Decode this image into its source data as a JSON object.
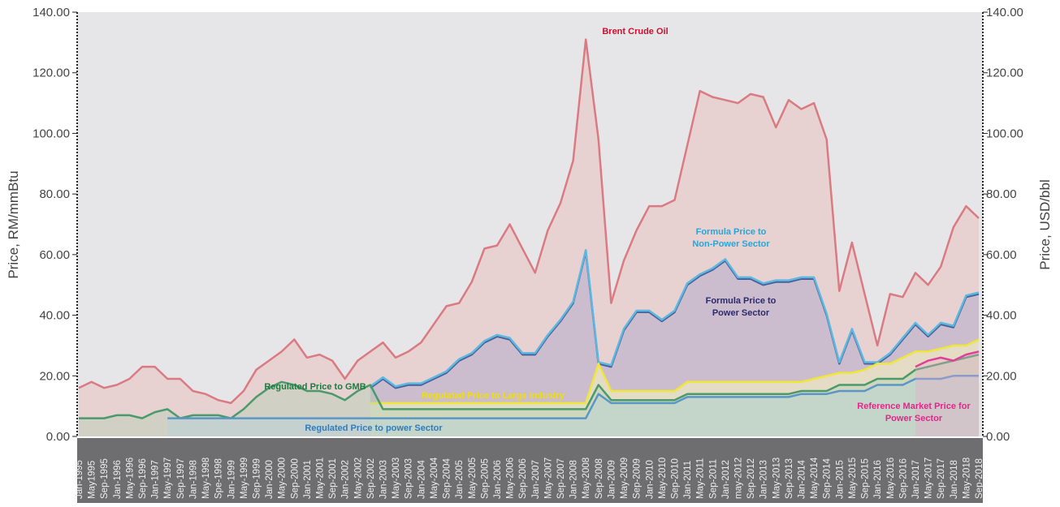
{
  "chart_data": {
    "type": "line",
    "y_label": "Price, RM/mmBtu",
    "y2_label": "Price, USD/bbl",
    "ylim": [
      0,
      140
    ],
    "yticks": [
      {
        "value": 0,
        "label": "0.00"
      },
      {
        "value": 20,
        "label": "20.00"
      },
      {
        "value": 40,
        "label": "40.00"
      },
      {
        "value": 60,
        "label": "60.00"
      },
      {
        "value": 80,
        "label": "80.00"
      },
      {
        "value": 100,
        "label": "100.00"
      },
      {
        "value": 120,
        "label": "120.00"
      },
      {
        "value": 140,
        "label": "140.00"
      }
    ],
    "y2lim": [
      0,
      140
    ],
    "y2ticks": [
      {
        "value": 0,
        "label": "0.00"
      },
      {
        "value": 20,
        "label": "20.00"
      },
      {
        "value": 40,
        "label": "40.00"
      },
      {
        "value": 60,
        "label": "60.00"
      },
      {
        "value": 80,
        "label": "80.00"
      },
      {
        "value": 100,
        "label": "100.00"
      },
      {
        "value": 120,
        "label": "120.00"
      },
      {
        "value": 140,
        "label": "140.00"
      }
    ],
    "categories": [
      "Jan-1995",
      "May1995",
      "Sep-1995",
      "Jan-1996",
      "May-1996",
      "Sep-1996",
      "Jan-1997",
      "May-1997",
      "Sep-1997",
      "Jan-1998",
      "May-1998",
      "Spe-1998",
      "Jan-1999",
      "May-1999",
      "Sep-1999",
      "Jan-2000",
      "May-2000",
      "Sep-2000",
      "Jan-2001",
      "May-2001",
      "Sep-2001",
      "Jan-2002",
      "May-2002",
      "Sep-2002",
      "Jan-2003",
      "May-2003",
      "Sep-2003",
      "Jan-2004",
      "May-2004",
      "Sep-2004",
      "Jan-2005",
      "May-2005",
      "Sep-2005",
      "Jan-2006",
      "May-2006",
      "Sep-2006",
      "Jan-2007",
      "May-2007",
      "Sep-2007",
      "Jan-2008",
      "May-2008",
      "Sep-2008",
      "Jan-2009",
      "May-2009",
      "Sep-2009",
      "Jan-2010",
      "May-2010",
      "Sep-2010",
      "Jan-2011",
      "May-2011",
      "Sep-2011",
      "Jan-2012",
      "may-2012",
      "Sep-2012",
      "Jan-2013",
      "May-2013",
      "Sep-2013",
      "Jan-2014",
      "May-2014",
      "Sep-2014",
      "Jan-2015",
      "May-2015",
      "Sep-2015",
      "Jan-2016",
      "May-2016",
      "Sep-2016",
      "Jan-2017",
      "May-2017",
      "Sep-2017",
      "Jan-2018",
      "May-2018",
      "Sep-2018"
    ],
    "series": [
      {
        "label": [
          "Brent Crude Oil"
        ],
        "axis": "y2",
        "color": "#da7a82",
        "fill": "rgba(232,170,165,0.35)",
        "label_color": "#c8102e",
        "values": [
          16,
          18,
          16,
          17,
          19,
          23,
          23,
          19,
          19,
          15,
          14,
          12,
          11,
          15,
          22,
          25,
          28,
          32,
          26,
          27,
          25,
          19,
          25,
          28,
          31,
          26,
          28,
          31,
          37,
          43,
          44,
          51,
          62,
          63,
          70,
          62,
          54,
          68,
          77,
          91,
          131,
          98,
          44,
          58,
          68,
          76,
          76,
          78,
          96,
          114,
          112,
          111,
          110,
          113,
          112,
          102,
          111,
          108,
          110,
          98,
          48,
          64,
          47,
          30,
          47,
          46,
          54,
          50,
          56,
          69,
          76,
          72
        ]
      },
      {
        "label": [
          "Formula Price to",
          "Power Sector"
        ],
        "color": "#4a5f9a",
        "fill": "rgba(140,140,200,0.3)",
        "label_color": "#2d2a6b",
        "values": [
          null,
          null,
          null,
          null,
          null,
          null,
          null,
          null,
          null,
          null,
          null,
          null,
          null,
          null,
          null,
          null,
          null,
          null,
          null,
          null,
          null,
          null,
          null,
          16,
          19,
          16,
          17,
          17,
          19,
          21,
          25,
          27,
          31,
          33,
          32,
          27,
          27,
          33,
          38,
          44,
          61,
          24,
          23,
          35,
          41,
          41,
          38,
          41,
          50,
          53,
          55,
          58,
          52,
          52,
          50,
          51,
          51,
          52,
          52,
          40,
          24,
          35,
          24,
          24,
          27,
          32,
          37,
          33,
          37,
          36,
          46,
          47
        ]
      },
      {
        "label": [
          "Formula Price to",
          "Non-Power Sector"
        ],
        "color": "#5cb8e0",
        "fill": "none",
        "label_color": "#2aa5d8",
        "values": [
          null,
          null,
          null,
          null,
          null,
          null,
          null,
          null,
          null,
          null,
          null,
          null,
          null,
          null,
          null,
          null,
          null,
          null,
          null,
          null,
          null,
          null,
          null,
          16.5,
          19.5,
          16.5,
          17.5,
          17.5,
          19.5,
          21.5,
          25.5,
          27.5,
          31.5,
          33.5,
          32.5,
          27.5,
          27.5,
          33.5,
          38.5,
          44.5,
          61.5,
          24.5,
          23.5,
          35.5,
          41.5,
          41.5,
          38.5,
          41.5,
          50.5,
          53.5,
          55.5,
          58.5,
          52.5,
          52.5,
          50.5,
          51.5,
          51.5,
          52.5,
          52.5,
          40.5,
          24.5,
          35.5,
          24.5,
          24.5,
          27.5,
          32.5,
          37.5,
          33.5,
          37.5,
          36.5,
          46.5,
          47.5
        ]
      },
      {
        "label": [
          "Regulated Price to Large Industry"
        ],
        "color": "#f0e63a",
        "fill": "rgba(250,245,190,0.55)",
        "label_color": "#f0e000",
        "values": [
          null,
          null,
          null,
          null,
          null,
          null,
          null,
          null,
          null,
          null,
          null,
          null,
          null,
          null,
          null,
          null,
          null,
          null,
          null,
          null,
          null,
          null,
          null,
          11,
          11,
          11,
          11,
          11,
          11,
          11,
          11,
          11,
          11,
          11,
          11,
          11,
          11,
          11,
          11,
          11,
          11,
          24,
          15,
          15,
          15,
          15,
          15,
          15,
          18,
          18,
          18,
          18,
          18,
          18,
          18,
          18,
          18,
          18,
          19,
          20,
          21,
          21,
          22,
          24,
          24,
          26,
          28,
          28,
          29,
          30,
          30,
          32
        ]
      },
      {
        "label": [
          "Regulated Price to GMB"
        ],
        "color": "#4a9a6c",
        "fill": "rgba(170,205,175,0.35)",
        "label_color": "#1f7a40",
        "values": [
          6,
          6,
          6,
          7,
          7,
          6,
          8,
          9,
          6,
          7,
          7,
          7,
          6,
          9,
          13,
          16,
          18,
          17,
          15,
          15,
          14,
          12,
          15,
          17,
          9,
          9,
          9,
          9,
          9,
          9,
          9,
          9,
          9,
          9,
          9,
          9,
          9,
          9,
          9,
          9,
          9,
          17,
          12,
          12,
          12,
          12,
          12,
          12,
          14,
          14,
          14,
          14,
          14,
          14,
          14,
          14,
          14,
          15,
          15,
          15,
          17,
          17,
          17,
          19,
          19,
          19,
          22,
          23,
          24,
          25,
          26,
          27
        ]
      },
      {
        "label": [
          "Regulated Price to power Sector"
        ],
        "color": "#5a96c8",
        "fill": "rgba(180,210,220,0.4)",
        "label_color": "#2e7cc0",
        "values": [
          null,
          null,
          null,
          null,
          null,
          null,
          null,
          6,
          6,
          6,
          6,
          6,
          6,
          6,
          6,
          6,
          6,
          6,
          6,
          6,
          6,
          6,
          6,
          6,
          6,
          6,
          6,
          6,
          6,
          6,
          6,
          6,
          6,
          6,
          6,
          6,
          6,
          6,
          6,
          6,
          6,
          14,
          11,
          11,
          11,
          11,
          11,
          11,
          13,
          13,
          13,
          13,
          13,
          13,
          13,
          13,
          13,
          14,
          14,
          14,
          15,
          15,
          15,
          17,
          17,
          17,
          19,
          19,
          19,
          20,
          20,
          20
        ]
      },
      {
        "label": [
          "Reference Market Price for",
          "Power Sector"
        ],
        "color": "#e0409a",
        "fill": "rgba(235,170,200,0.35)",
        "label_color": "#e0288a",
        "values": [
          null,
          null,
          null,
          null,
          null,
          null,
          null,
          null,
          null,
          null,
          null,
          null,
          null,
          null,
          null,
          null,
          null,
          null,
          null,
          null,
          null,
          null,
          null,
          null,
          null,
          null,
          null,
          null,
          null,
          null,
          null,
          null,
          null,
          null,
          null,
          null,
          null,
          null,
          null,
          null,
          null,
          null,
          null,
          null,
          null,
          null,
          null,
          null,
          null,
          null,
          null,
          null,
          null,
          null,
          null,
          null,
          null,
          null,
          null,
          null,
          null,
          null,
          null,
          null,
          null,
          null,
          23,
          25,
          26,
          25,
          27,
          28
        ]
      }
    ]
  }
}
